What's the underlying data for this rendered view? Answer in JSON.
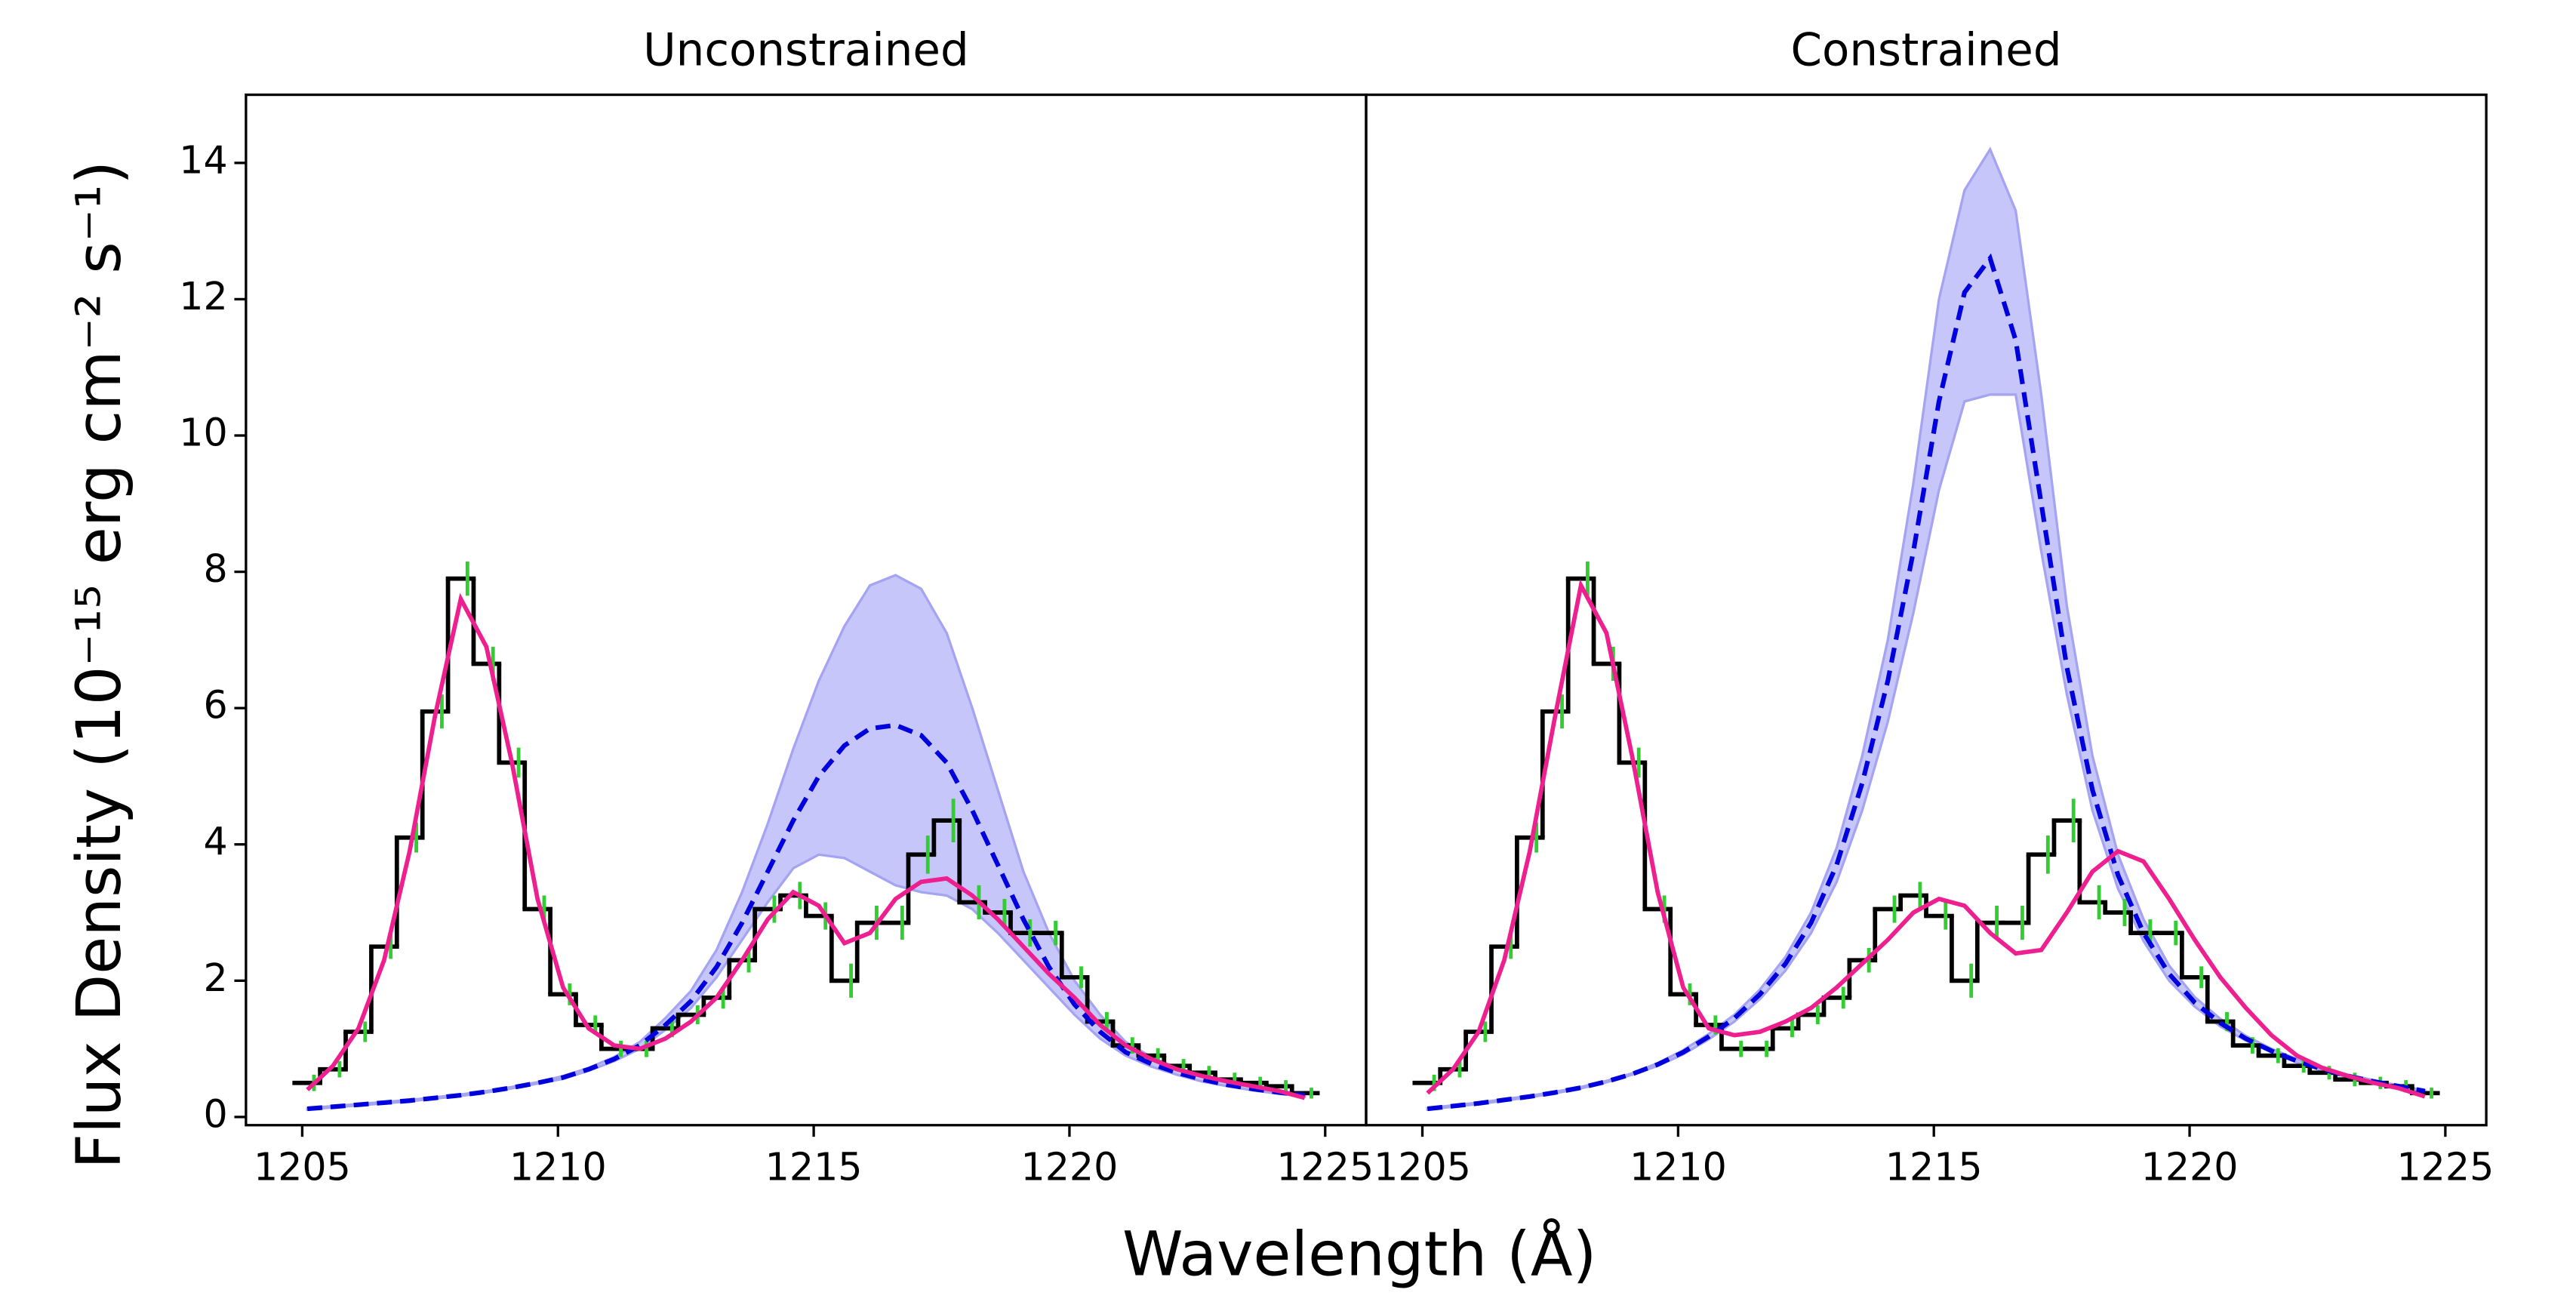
{
  "xlabel": "Wavelength (Å)",
  "ylabel": "Flux Density (10⁻¹⁵ erg cm⁻² s⁻¹)",
  "chart_data": [
    {
      "type": "line",
      "title": "Unconstrained",
      "xlim": [
        1203.9,
        1225.8
      ],
      "ylim": [
        -0.12,
        15
      ],
      "xticks": [
        1205,
        1210,
        1215,
        1220,
        1225
      ],
      "yticks": [
        0,
        2,
        4,
        6,
        8,
        10,
        12,
        14
      ],
      "x": [
        1205.1,
        1205.6,
        1206.1,
        1206.6,
        1207.1,
        1207.6,
        1208.1,
        1208.6,
        1209.1,
        1209.6,
        1210.1,
        1210.6,
        1211.1,
        1211.6,
        1212.1,
        1212.6,
        1213.1,
        1213.6,
        1214.1,
        1214.6,
        1215.1,
        1215.6,
        1216.1,
        1216.6,
        1217.1,
        1217.6,
        1218.1,
        1218.6,
        1219.1,
        1219.6,
        1220.1,
        1220.6,
        1221.1,
        1221.6,
        1222.1,
        1222.6,
        1223.1,
        1223.6,
        1224.1,
        1224.6
      ],
      "data": {
        "color": "#000000",
        "error_color": "#33cc33",
        "values": [
          0.5,
          0.7,
          1.25,
          2.5,
          4.1,
          5.95,
          7.9,
          6.65,
          5.2,
          3.05,
          1.8,
          1.35,
          1.0,
          1.0,
          1.3,
          1.5,
          1.75,
          2.3,
          3.05,
          3.25,
          2.95,
          2.0,
          2.85,
          2.85,
          3.85,
          4.35,
          3.15,
          3.0,
          2.7,
          2.7,
          2.05,
          1.4,
          1.05,
          0.9,
          0.75,
          0.65,
          0.55,
          0.5,
          0.45,
          0.35
        ],
        "errors": [
          0.12,
          0.12,
          0.15,
          0.18,
          0.22,
          0.25,
          0.25,
          0.25,
          0.22,
          0.2,
          0.16,
          0.14,
          0.12,
          0.12,
          0.13,
          0.14,
          0.16,
          0.18,
          0.2,
          0.2,
          0.2,
          0.25,
          0.25,
          0.25,
          0.28,
          0.32,
          0.25,
          0.2,
          0.2,
          0.18,
          0.16,
          0.14,
          0.12,
          0.11,
          0.1,
          0.1,
          0.1,
          0.09,
          0.09,
          0.08
        ]
      },
      "model": {
        "color": "#ee1f8f",
        "values": [
          0.4,
          0.75,
          1.3,
          2.3,
          3.9,
          5.9,
          7.6,
          6.9,
          5.2,
          3.2,
          1.9,
          1.3,
          1.05,
          1.0,
          1.15,
          1.4,
          1.75,
          2.3,
          2.9,
          3.3,
          3.1,
          2.55,
          2.7,
          3.2,
          3.45,
          3.5,
          3.25,
          2.9,
          2.5,
          2.1,
          1.75,
          1.35,
          1.05,
          0.85,
          0.7,
          0.6,
          0.52,
          0.45,
          0.38,
          0.28
        ]
      },
      "intrinsic": {
        "color": "#0000dd",
        "band_color": "#c6c6fa",
        "band_edge": "#a4a4f2",
        "values": [
          0.12,
          0.15,
          0.18,
          0.21,
          0.24,
          0.28,
          0.32,
          0.37,
          0.43,
          0.5,
          0.58,
          0.7,
          0.85,
          1.05,
          1.35,
          1.7,
          2.2,
          2.85,
          3.6,
          4.35,
          5.0,
          5.45,
          5.7,
          5.75,
          5.6,
          5.2,
          4.5,
          3.7,
          2.9,
          2.2,
          1.65,
          1.25,
          0.95,
          0.78,
          0.65,
          0.55,
          0.47,
          0.41,
          0.36,
          0.32
        ],
        "upper": [
          0.13,
          0.16,
          0.19,
          0.22,
          0.25,
          0.29,
          0.33,
          0.38,
          0.44,
          0.51,
          0.6,
          0.72,
          0.88,
          1.1,
          1.45,
          1.85,
          2.45,
          3.3,
          4.3,
          5.4,
          6.4,
          7.2,
          7.8,
          7.95,
          7.75,
          7.1,
          6.0,
          4.8,
          3.6,
          2.7,
          2.0,
          1.5,
          1.1,
          0.88,
          0.72,
          0.6,
          0.5,
          0.44,
          0.38,
          0.34
        ],
        "lower": [
          0.11,
          0.14,
          0.17,
          0.2,
          0.23,
          0.27,
          0.31,
          0.36,
          0.42,
          0.49,
          0.56,
          0.68,
          0.82,
          1.0,
          1.28,
          1.6,
          2.05,
          2.6,
          3.15,
          3.65,
          3.85,
          3.8,
          3.6,
          3.4,
          3.3,
          3.25,
          3.05,
          2.7,
          2.3,
          1.9,
          1.5,
          1.15,
          0.9,
          0.74,
          0.62,
          0.52,
          0.45,
          0.39,
          0.34,
          0.3
        ]
      }
    },
    {
      "type": "line",
      "title": "Constrained",
      "xlim": [
        1203.9,
        1225.8
      ],
      "ylim": [
        -0.12,
        15
      ],
      "xticks": [
        1205,
        1210,
        1215,
        1220,
        1225
      ],
      "yticks": [
        0,
        2,
        4,
        6,
        8,
        10,
        12,
        14
      ],
      "x": [
        1205.1,
        1205.6,
        1206.1,
        1206.6,
        1207.1,
        1207.6,
        1208.1,
        1208.6,
        1209.1,
        1209.6,
        1210.1,
        1210.6,
        1211.1,
        1211.6,
        1212.1,
        1212.6,
        1213.1,
        1213.6,
        1214.1,
        1214.6,
        1215.1,
        1215.6,
        1216.1,
        1216.6,
        1217.1,
        1217.6,
        1218.1,
        1218.6,
        1219.1,
        1219.6,
        1220.1,
        1220.6,
        1221.1,
        1221.6,
        1222.1,
        1222.6,
        1223.1,
        1223.6,
        1224.1,
        1224.6
      ],
      "data": {
        "color": "#000000",
        "error_color": "#33cc33",
        "values": [
          0.5,
          0.7,
          1.25,
          2.5,
          4.1,
          5.95,
          7.9,
          6.65,
          5.2,
          3.05,
          1.8,
          1.35,
          1.0,
          1.0,
          1.3,
          1.5,
          1.75,
          2.3,
          3.05,
          3.25,
          2.95,
          2.0,
          2.85,
          2.85,
          3.85,
          4.35,
          3.15,
          3.0,
          2.7,
          2.7,
          2.05,
          1.4,
          1.05,
          0.9,
          0.75,
          0.65,
          0.55,
          0.5,
          0.45,
          0.35
        ],
        "errors": [
          0.12,
          0.12,
          0.15,
          0.18,
          0.22,
          0.25,
          0.25,
          0.25,
          0.22,
          0.2,
          0.16,
          0.14,
          0.12,
          0.12,
          0.13,
          0.14,
          0.16,
          0.18,
          0.2,
          0.2,
          0.2,
          0.25,
          0.25,
          0.25,
          0.28,
          0.32,
          0.25,
          0.2,
          0.2,
          0.18,
          0.16,
          0.14,
          0.12,
          0.11,
          0.1,
          0.1,
          0.1,
          0.09,
          0.09,
          0.08
        ]
      },
      "model": {
        "color": "#ee1f8f",
        "values": [
          0.35,
          0.7,
          1.25,
          2.3,
          3.9,
          5.9,
          7.8,
          7.1,
          5.3,
          3.3,
          1.9,
          1.3,
          1.2,
          1.25,
          1.4,
          1.6,
          1.9,
          2.25,
          2.6,
          3.0,
          3.2,
          3.1,
          2.7,
          2.4,
          2.45,
          3.0,
          3.6,
          3.9,
          3.75,
          3.2,
          2.6,
          2.05,
          1.6,
          1.2,
          0.9,
          0.72,
          0.6,
          0.5,
          0.42,
          0.3
        ]
      },
      "intrinsic": {
        "color": "#0000dd",
        "band_color": "#c6c6fa",
        "band_edge": "#a4a4f2",
        "values": [
          0.12,
          0.16,
          0.2,
          0.25,
          0.3,
          0.36,
          0.43,
          0.52,
          0.63,
          0.77,
          0.95,
          1.18,
          1.45,
          1.8,
          2.25,
          2.85,
          3.7,
          4.9,
          6.4,
          8.3,
          10.5,
          12.1,
          12.6,
          11.4,
          9.0,
          6.6,
          4.8,
          3.55,
          2.7,
          2.1,
          1.68,
          1.38,
          1.15,
          0.97,
          0.82,
          0.7,
          0.6,
          0.52,
          0.45,
          0.38
        ],
        "upper": [
          0.13,
          0.17,
          0.21,
          0.26,
          0.31,
          0.37,
          0.44,
          0.53,
          0.64,
          0.79,
          0.98,
          1.22,
          1.5,
          1.87,
          2.35,
          3.0,
          3.95,
          5.3,
          7.0,
          9.3,
          12.0,
          13.6,
          14.2,
          13.3,
          10.6,
          7.5,
          5.3,
          3.85,
          2.9,
          2.22,
          1.76,
          1.44,
          1.19,
          1.0,
          0.85,
          0.72,
          0.62,
          0.54,
          0.46,
          0.39
        ],
        "lower": [
          0.11,
          0.15,
          0.19,
          0.24,
          0.29,
          0.35,
          0.42,
          0.51,
          0.62,
          0.75,
          0.92,
          1.14,
          1.4,
          1.73,
          2.15,
          2.7,
          3.45,
          4.5,
          5.8,
          7.4,
          9.2,
          10.5,
          10.6,
          10.6,
          8.3,
          6.2,
          4.5,
          3.35,
          2.58,
          2.0,
          1.62,
          1.33,
          1.12,
          0.95,
          0.8,
          0.68,
          0.58,
          0.5,
          0.44,
          0.37
        ]
      }
    }
  ]
}
